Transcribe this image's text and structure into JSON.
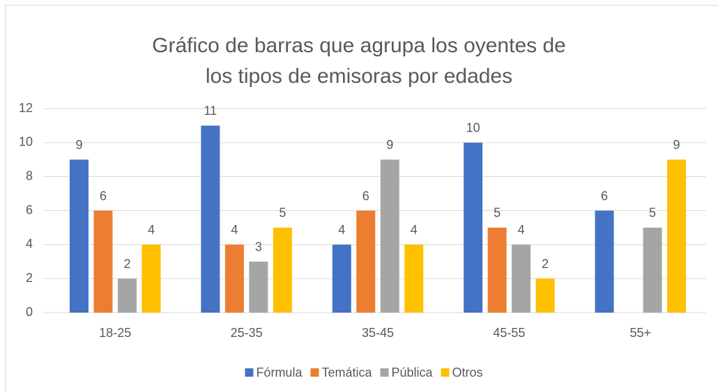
{
  "chart_data": {
    "type": "bar",
    "title": "Gráfico de barras que agrupa los oyentes de los tipos de emisoras por edades",
    "categories": [
      "18-25",
      "25-35",
      "35-45",
      "45-55",
      "55+"
    ],
    "series": [
      {
        "name": "Fórmula",
        "color": "#4472c4",
        "values": [
          9,
          11,
          4,
          10,
          6
        ]
      },
      {
        "name": "Temática",
        "color": "#ed7d31",
        "values": [
          6,
          4,
          6,
          5,
          null
        ]
      },
      {
        "name": "Pública",
        "color": "#a5a5a5",
        "values": [
          2,
          3,
          9,
          4,
          5
        ]
      },
      {
        "name": "Otros",
        "color": "#ffc000",
        "values": [
          4,
          5,
          4,
          2,
          9
        ]
      }
    ],
    "ylim": [
      0,
      12
    ],
    "yticks": [
      0,
      2,
      4,
      6,
      8,
      10,
      12
    ],
    "grid": true,
    "legend": "bottom"
  }
}
